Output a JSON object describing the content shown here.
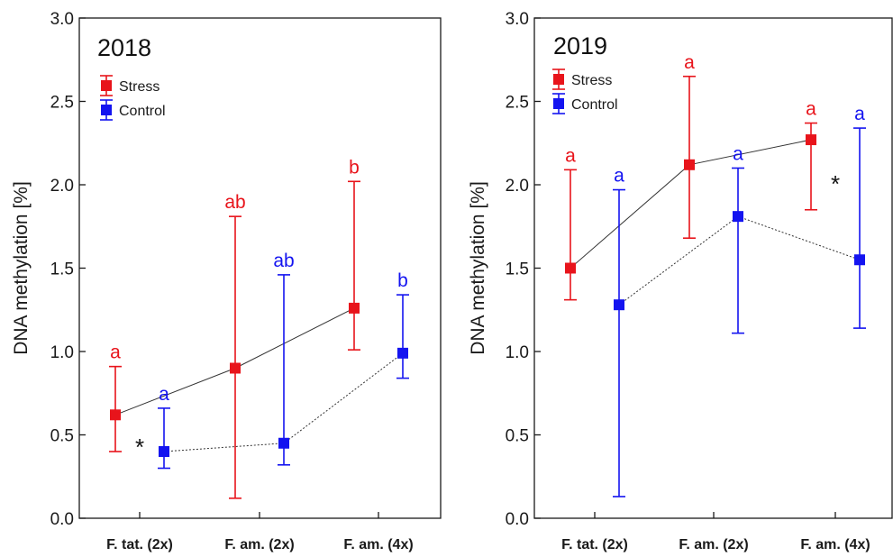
{
  "colors": {
    "stress": "#e8141b",
    "control": "#1414f0",
    "axis": "#1a1a1a"
  },
  "chart_data": [
    {
      "type": "line",
      "title": "2018",
      "ylabel": "DNA methylation [%]",
      "ylim": [
        0,
        3
      ],
      "yticks": [
        "0.0",
        "0.5",
        "1.0",
        "1.5",
        "2.0",
        "2.5",
        "3.0"
      ],
      "categories": [
        "F. tat. (2x)",
        "F. am. (2x)",
        "F. am. (4x)"
      ],
      "legend": {
        "position": "top-left",
        "entries": [
          "Stress",
          "Control"
        ]
      },
      "series": [
        {
          "name": "Stress",
          "line": "solid",
          "values": [
            0.62,
            0.9,
            1.26
          ],
          "lower": [
            0.4,
            0.12,
            1.01
          ],
          "upper": [
            0.91,
            1.81,
            2.02
          ],
          "letters": [
            "a",
            "ab",
            "b"
          ]
        },
        {
          "name": "Control",
          "line": "dotted",
          "values": [
            0.4,
            0.45,
            0.99
          ],
          "lower": [
            0.3,
            0.32,
            0.84
          ],
          "upper": [
            0.66,
            1.46,
            1.34
          ],
          "letters": [
            "a",
            "ab",
            "b"
          ]
        }
      ],
      "annotations": [
        {
          "text": "*",
          "category": 0
        }
      ]
    },
    {
      "type": "line",
      "title": "2019",
      "ylabel": "DNA methylation [%]",
      "ylim": [
        0,
        3
      ],
      "yticks": [
        "0.0",
        "0.5",
        "1.0",
        "1.5",
        "2.0",
        "2.5",
        "3.0"
      ],
      "categories": [
        "F. tat. (2x)",
        "F. am. (2x)",
        "F. am. (4x)"
      ],
      "legend": {
        "position": "top-left",
        "entries": [
          "Stress",
          "Control"
        ]
      },
      "series": [
        {
          "name": "Stress",
          "line": "solid",
          "values": [
            1.5,
            2.12,
            2.27
          ],
          "lower": [
            1.31,
            1.68,
            1.85
          ],
          "upper": [
            2.09,
            2.65,
            2.37
          ],
          "letters": [
            "a",
            "a",
            "a"
          ]
        },
        {
          "name": "Control",
          "line": "dotted",
          "values": [
            1.28,
            1.81,
            1.55
          ],
          "lower": [
            0.13,
            1.11,
            1.14
          ],
          "upper": [
            1.97,
            2.1,
            2.34
          ],
          "letters": [
            "a",
            "a",
            "a"
          ]
        }
      ],
      "annotations": [
        {
          "text": "*",
          "category": 2
        }
      ]
    }
  ]
}
